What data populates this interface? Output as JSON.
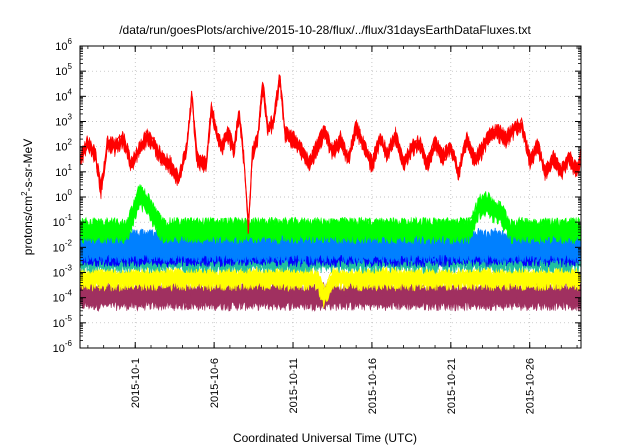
{
  "chart_data": {
    "type": "line",
    "title": "/data/run/goesPlots/archive/2015-10-28/flux/../flux/31daysEarthDataFluxes.txt",
    "xlabel": "Coordinated Universal Time (UTC)",
    "ylabel": {
      "prefix": "protons/cm",
      "sup": "2",
      "suffix": "-s-sr-MeV"
    },
    "x_range": [
      "2015-09-27T12:00",
      "2015-10-29T06:00"
    ],
    "x_ticks": [
      "2015-10-1",
      "2015-10-6",
      "2015-10-11",
      "2015-10-16",
      "2015-10-21",
      "2015-10-26"
    ],
    "y_scale": "log",
    "y_range": [
      1e-06,
      1000000.0
    ],
    "y_ticks": [
      {
        "base": "10",
        "exp": "-6"
      },
      {
        "base": "10",
        "exp": "-5"
      },
      {
        "base": "10",
        "exp": "-4"
      },
      {
        "base": "10",
        "exp": "-3"
      },
      {
        "base": "10",
        "exp": "-2"
      },
      {
        "base": "10",
        "exp": "-1"
      },
      {
        "base": "10",
        "exp": "0"
      },
      {
        "base": "10",
        "exp": "1"
      },
      {
        "base": "10",
        "exp": "2"
      },
      {
        "base": "10",
        "exp": "3"
      },
      {
        "base": "10",
        "exp": "4"
      },
      {
        "base": "10",
        "exp": "5"
      },
      {
        "base": "10",
        "exp": "6"
      }
    ],
    "grid": true,
    "series": [
      {
        "color": "#ff0000",
        "band": [
          0.6,
          1.6
        ],
        "points": [
          [
            "2015-09-27T12:00",
            30
          ],
          [
            "2015-09-28T00:00",
            150
          ],
          [
            "2015-09-28T12:00",
            40
          ],
          [
            "2015-09-28T20:00",
            2
          ],
          [
            "2015-09-29T06:00",
            150
          ],
          [
            "2015-09-29T18:00",
            100
          ],
          [
            "2015-09-30T06:00",
            200
          ],
          [
            "2015-09-30T18:00",
            20
          ],
          [
            "2015-10-01T06:00",
            80
          ],
          [
            "2015-10-01T18:00",
            250
          ],
          [
            "2015-10-02T06:00",
            100
          ],
          [
            "2015-10-02T18:00",
            30
          ],
          [
            "2015-10-03T06:00",
            20
          ],
          [
            "2015-10-03T18:00",
            5
          ],
          [
            "2015-10-04T06:00",
            80
          ],
          [
            "2015-10-04T14:00",
            12000
          ],
          [
            "2015-10-04T22:00",
            30
          ],
          [
            "2015-10-05T12:00",
            20
          ],
          [
            "2015-10-05T20:00",
            4000
          ],
          [
            "2015-10-06T04:00",
            300
          ],
          [
            "2015-10-06T12:00",
            100
          ],
          [
            "2015-10-06T20:00",
            400
          ],
          [
            "2015-10-07T06:00",
            80
          ],
          [
            "2015-10-07T14:00",
            2000
          ],
          [
            "2015-10-07T22:00",
            20
          ],
          [
            "2015-10-08T04:00",
            0.05
          ],
          [
            "2015-10-08T10:00",
            50
          ],
          [
            "2015-10-08T18:00",
            200
          ],
          [
            "2015-10-09T02:00",
            30000
          ],
          [
            "2015-10-09T10:00",
            500
          ],
          [
            "2015-10-09T18:00",
            1000
          ],
          [
            "2015-10-10T04:00",
            60000
          ],
          [
            "2015-10-10T12:00",
            300
          ],
          [
            "2015-10-11T00:00",
            200
          ],
          [
            "2015-10-11T12:00",
            80
          ],
          [
            "2015-10-12T00:00",
            20
          ],
          [
            "2015-10-12T12:00",
            100
          ],
          [
            "2015-10-13T00:00",
            400
          ],
          [
            "2015-10-13T12:00",
            60
          ],
          [
            "2015-10-14T00:00",
            200
          ],
          [
            "2015-10-14T12:00",
            30
          ],
          [
            "2015-10-15T00:00",
            600
          ],
          [
            "2015-10-15T12:00",
            100
          ],
          [
            "2015-10-16T00:00",
            20
          ],
          [
            "2015-10-16T12:00",
            200
          ],
          [
            "2015-10-17T00:00",
            50
          ],
          [
            "2015-10-17T12:00",
            300
          ],
          [
            "2015-10-18T00:00",
            20
          ],
          [
            "2015-10-18T12:00",
            80
          ],
          [
            "2015-10-19T00:00",
            150
          ],
          [
            "2015-10-19T12:00",
            20
          ],
          [
            "2015-10-20T00:00",
            150
          ],
          [
            "2015-10-20T12:00",
            40
          ],
          [
            "2015-10-21T00:00",
            100
          ],
          [
            "2015-10-21T12:00",
            10
          ],
          [
            "2015-10-22T00:00",
            200
          ],
          [
            "2015-10-22T12:00",
            30
          ],
          [
            "2015-10-23T00:00",
            80
          ],
          [
            "2015-10-23T12:00",
            300
          ],
          [
            "2015-10-24T00:00",
            400
          ],
          [
            "2015-10-24T12:00",
            200
          ],
          [
            "2015-10-25T00:00",
            500
          ],
          [
            "2015-10-25T12:00",
            800
          ],
          [
            "2015-10-26T00:00",
            30
          ],
          [
            "2015-10-26T12:00",
            100
          ],
          [
            "2015-10-27T00:00",
            10
          ],
          [
            "2015-10-27T12:00",
            40
          ],
          [
            "2015-10-28T00:00",
            10
          ],
          [
            "2015-10-28T12:00",
            40
          ],
          [
            "2015-10-29T00:00",
            10
          ],
          [
            "2015-10-29T06:00",
            50
          ]
        ]
      },
      {
        "color": "#00ff00",
        "band": [
          0.02,
          0.1
        ],
        "points": [
          [
            "2015-09-27T12:00",
            0.05
          ],
          [
            "2015-09-30T12:00",
            0.05
          ],
          [
            "2015-10-01T00:00",
            0.4
          ],
          [
            "2015-10-01T06:00",
            1.2
          ],
          [
            "2015-10-01T18:00",
            0.6
          ],
          [
            "2015-10-02T06:00",
            0.15
          ],
          [
            "2015-10-02T18:00",
            0.05
          ],
          [
            "2015-10-22T06:00",
            0.05
          ],
          [
            "2015-10-22T18:00",
            0.4
          ],
          [
            "2015-10-23T06:00",
            0.6
          ],
          [
            "2015-10-23T18:00",
            0.3
          ],
          [
            "2015-10-24T06:00",
            0.2
          ],
          [
            "2015-10-24T18:00",
            0.05
          ],
          [
            "2015-10-29T06:00",
            0.05
          ]
        ]
      },
      {
        "color": "#0080ff",
        "band": [
          0.004,
          0.04
        ],
        "points": [
          [
            "2015-09-27T12:00",
            0.012
          ],
          [
            "2015-10-29T06:00",
            0.012
          ]
        ]
      },
      {
        "color": "#0000ff",
        "band": [
          0.003,
          0.015
        ],
        "points": [
          [
            "2015-09-27T12:00",
            0.006
          ],
          [
            "2015-10-29T06:00",
            0.006
          ]
        ]
      },
      {
        "color": "#20c0a0",
        "band": [
          0.0015,
          0.005
        ],
        "points": [
          [
            "2015-09-27T12:00",
            0.0028
          ],
          [
            "2015-10-29T06:00",
            0.0028
          ]
        ]
      },
      {
        "color": "#ffff00",
        "band": [
          0.0003,
          0.0012
        ],
        "points": [
          [
            "2015-09-27T12:00",
            0.0006
          ],
          [
            "2015-10-12T12:00",
            0.0006
          ],
          [
            "2015-10-13T00:00",
            0.0001
          ],
          [
            "2015-10-13T12:00",
            0.0006
          ],
          [
            "2015-10-29T06:00",
            0.0006
          ]
        ]
      },
      {
        "color": "#a03060",
        "band": [
          5e-05,
          0.0003
        ],
        "points": [
          [
            "2015-09-27T12:00",
            0.00012
          ],
          [
            "2015-10-29T06:00",
            0.00012
          ]
        ]
      }
    ]
  }
}
